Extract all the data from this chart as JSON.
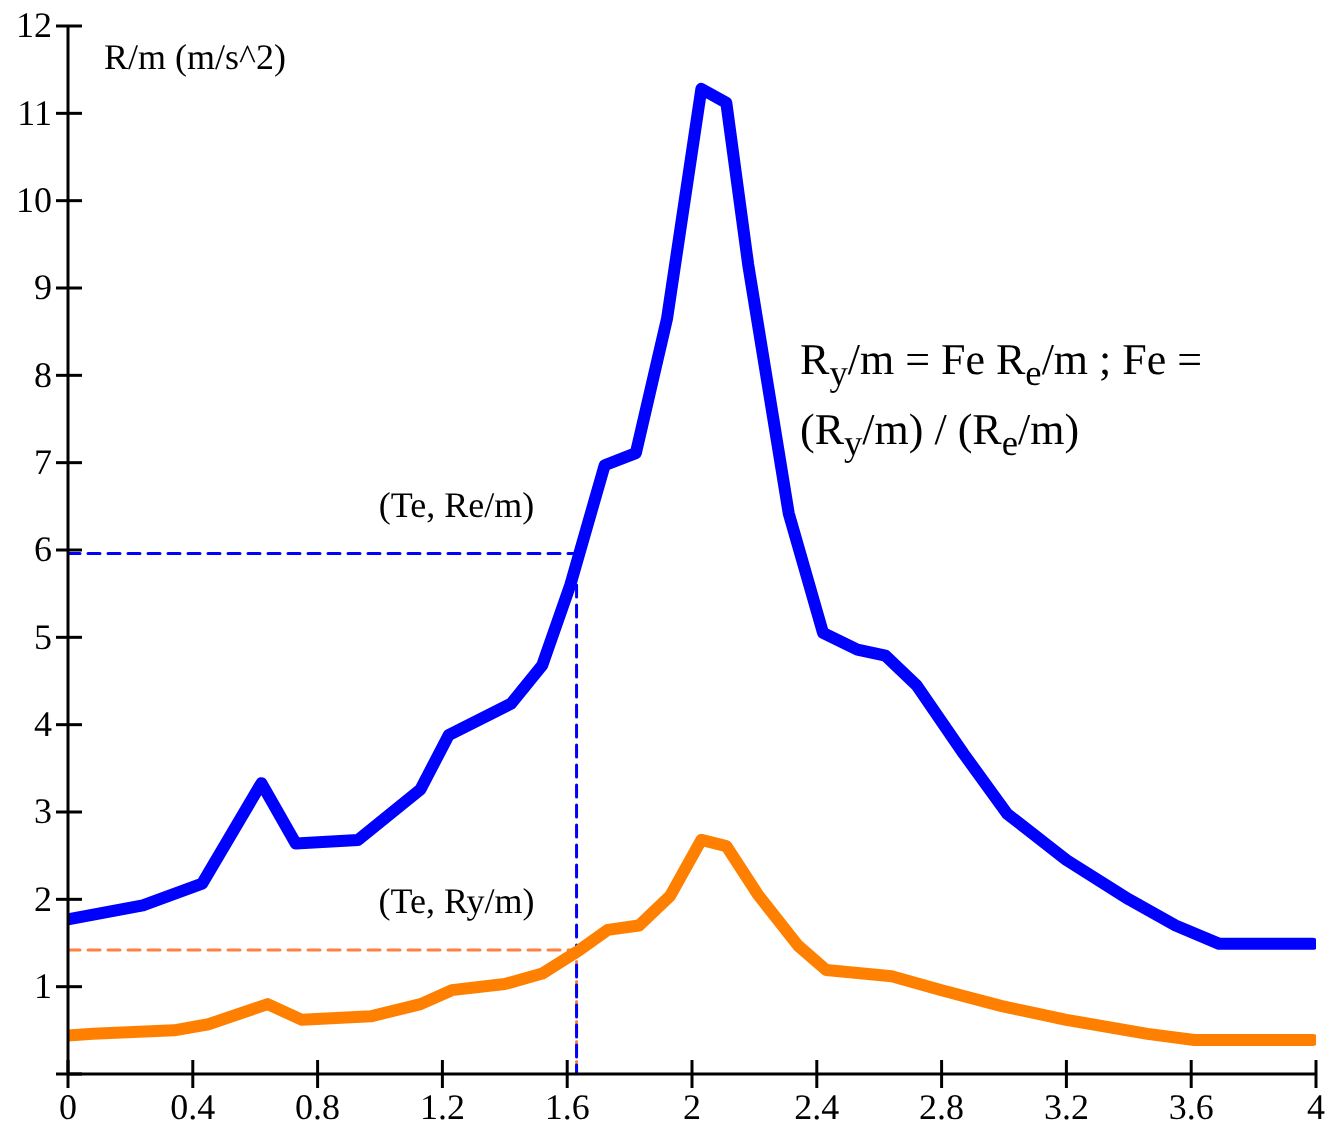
{
  "chart_data": {
    "type": "line",
    "ylabel": "R/m (m/s^2)",
    "xlim": [
      0,
      4
    ],
    "xticks": [
      0,
      0.4,
      0.8,
      1.2,
      1.6,
      2,
      2.4,
      2.8,
      3.2,
      3.6,
      4
    ],
    "ylim": [
      0,
      12
    ],
    "yticks": [
      {
        "value": 0,
        "label": null
      },
      1,
      2,
      3,
      4,
      5,
      6,
      7,
      8,
      9,
      10,
      11,
      12
    ],
    "grid": false,
    "legend": false,
    "marker": "none",
    "series": [
      {
        "color": "#0000ff",
        "x": [
          0,
          0.24,
          0.43,
          0.62,
          0.73,
          0.93,
          1.13,
          1.22,
          1.42,
          1.52,
          1.61,
          1.72,
          1.82,
          1.92,
          2.03,
          2.11,
          2.18,
          2.31,
          2.42,
          2.53,
          2.62,
          2.72,
          2.87,
          3.01,
          3.2,
          3.4,
          3.55,
          3.69,
          3.99
        ],
        "values": [
          1.77,
          1.93,
          2.18,
          3.33,
          2.64,
          2.68,
          3.26,
          3.88,
          4.24,
          4.68,
          5.6,
          6.97,
          7.11,
          8.65,
          11.28,
          11.12,
          9.27,
          6.42,
          5.05,
          4.86,
          4.79,
          4.45,
          3.67,
          2.98,
          2.45,
          2.0,
          1.7,
          1.49,
          1.49
        ]
      },
      {
        "color": "#ff8000",
        "x": [
          0,
          0.08,
          0.34,
          0.45,
          0.64,
          0.75,
          0.97,
          1.13,
          1.23,
          1.4,
          1.52,
          1.64,
          1.73,
          1.83,
          1.93,
          2.03,
          2.11,
          2.21,
          2.34,
          2.43,
          2.64,
          2.8,
          2.99,
          3.2,
          3.46,
          3.61,
          3.99
        ],
        "values": [
          0.44,
          0.46,
          0.5,
          0.57,
          0.8,
          0.62,
          0.66,
          0.8,
          0.96,
          1.03,
          1.15,
          1.42,
          1.65,
          1.7,
          2.04,
          2.68,
          2.61,
          2.06,
          1.47,
          1.19,
          1.12,
          0.96,
          0.78,
          0.62,
          0.46,
          0.39,
          0.39
        ]
      },
      {
        "color": "#0000ff",
        "line_style": "dashed",
        "x": [
          0,
          1.63,
          1.63
        ],
        "values": [
          5.96,
          5.96,
          0
        ]
      },
      {
        "color": "#ff8040",
        "line_style": "dashed",
        "x": [
          0,
          1.63,
          1.63
        ],
        "values": [
          1.42,
          1.42,
          0
        ]
      }
    ],
    "annotations": [
      {
        "text": "(Te, Re/m)",
        "x": 1.63,
        "y": 5.96
      },
      {
        "text": "(Te, Ry/m)",
        "x": 1.63,
        "y": 1.42
      },
      "R$_{y}$/m = Fe R$_{e}$/m  ;  Fe = (R$_{y}$/m) / (R$_{e}$/m)"
    ]
  }
}
